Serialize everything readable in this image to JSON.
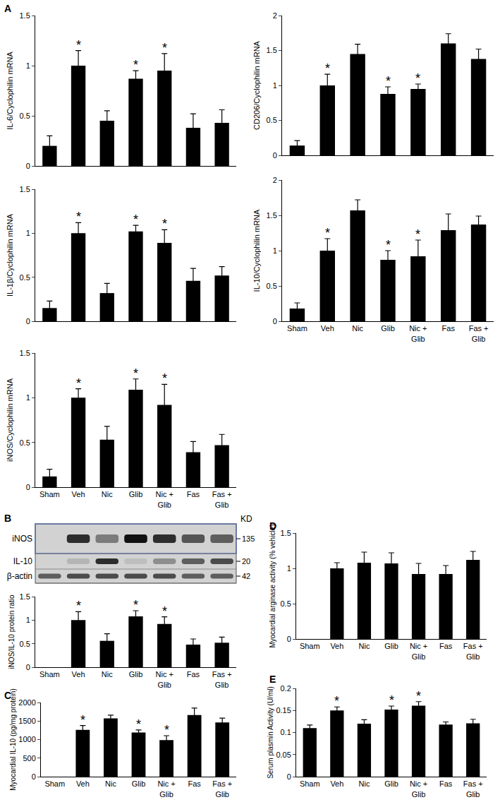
{
  "chart_data": [
    {
      "type": "bar",
      "title": "A",
      "y_label": "IL-6/Cyclophilin mRNA",
      "categories": [
        "Sham",
        "Veh",
        "Nic",
        "Glib",
        "Nic + Glib",
        "Fas",
        "Fas + Glib"
      ],
      "values": [
        0.2,
        1.0,
        0.45,
        0.87,
        0.95,
        0.38,
        0.43
      ],
      "errors": [
        0.1,
        0.15,
        0.1,
        0.08,
        0.17,
        0.14,
        0.13
      ],
      "color": "#000000",
      "ylim": [
        0,
        1.5
      ],
      "yticks": [
        0,
        0.5,
        1,
        1.5
      ],
      "grid": false,
      "tick_labels": "y",
      "annotations": [
        {
          "category": "Veh",
          "text": "*"
        },
        {
          "category": "Glib",
          "text": "*"
        },
        {
          "category": "Nic + Glib",
          "text": "*"
        }
      ]
    },
    {
      "type": "bar",
      "y_label": "IL-1β/Cyclophilin mRNA",
      "categories": [
        "Sham",
        "Veh",
        "Nic",
        "Glib",
        "Nic + Glib",
        "Fas",
        "Fas + Glib"
      ],
      "values": [
        0.15,
        1.0,
        0.32,
        1.02,
        0.89,
        0.46,
        0.52
      ],
      "errors": [
        0.08,
        0.12,
        0.11,
        0.07,
        0.15,
        0.14,
        0.1
      ],
      "color": "#000000",
      "ylim": [
        0,
        1.5
      ],
      "yticks": [
        0,
        0.5,
        1,
        1.5
      ],
      "grid": false,
      "tick_labels": "y",
      "annotations": [
        {
          "category": "Veh",
          "text": "*"
        },
        {
          "category": "Glib",
          "text": "*"
        },
        {
          "category": "Nic + Glib",
          "text": "*"
        }
      ]
    },
    {
      "type": "bar",
      "y_label": "iNOS/Cyclophilin mRNA",
      "categories": [
        "Sham",
        "Veh",
        "Nic",
        "Glib",
        "Nic + Glib",
        "Fas",
        "Fas + Glib"
      ],
      "values": [
        0.12,
        1.0,
        0.53,
        1.09,
        0.92,
        0.39,
        0.47
      ],
      "errors": [
        0.08,
        0.1,
        0.15,
        0.12,
        0.23,
        0.12,
        0.12
      ],
      "color": "#000000",
      "ylim": [
        0,
        1.5
      ],
      "yticks": [
        0,
        0.5,
        1,
        1.5
      ],
      "grid": false,
      "annotations": [
        {
          "category": "Veh",
          "text": "*"
        },
        {
          "category": "Glib",
          "text": "*"
        },
        {
          "category": "Nic + Glib",
          "text": "*"
        }
      ]
    },
    {
      "type": "bar",
      "y_label": "CD206/Cyclophilin mRNA",
      "categories": [
        "Sham",
        "Veh",
        "Nic",
        "Glib",
        "Nic + Glib",
        "Fas",
        "Fas + Glib"
      ],
      "values": [
        0.14,
        1.0,
        1.45,
        0.88,
        0.95,
        1.6,
        1.38
      ],
      "errors": [
        0.07,
        0.16,
        0.14,
        0.1,
        0.07,
        0.14,
        0.14
      ],
      "color": "#000000",
      "ylim": [
        0,
        2
      ],
      "yticks": [
        0,
        0.5,
        1,
        1.5,
        2
      ],
      "grid": false,
      "tick_labels": "y",
      "annotations": [
        {
          "category": "Veh",
          "text": "*"
        },
        {
          "category": "Glib",
          "text": "*"
        },
        {
          "category": "Nic + Glib",
          "text": "*"
        }
      ]
    },
    {
      "type": "bar",
      "y_label": "IL-10/Cyclophilin mRNA",
      "categories": [
        "Sham",
        "Veh",
        "Nic",
        "Glib",
        "Nic + Glib",
        "Fas",
        "Fas + Glib"
      ],
      "values": [
        0.18,
        1.0,
        1.57,
        0.87,
        0.92,
        1.29,
        1.37
      ],
      "errors": [
        0.08,
        0.17,
        0.15,
        0.13,
        0.23,
        0.23,
        0.12
      ],
      "color": "#000000",
      "ylim": [
        0,
        2
      ],
      "yticks": [
        0,
        0.5,
        1,
        1.5,
        2
      ],
      "grid": false,
      "annotations": [
        {
          "category": "Veh",
          "text": "*"
        },
        {
          "category": "Glib",
          "text": "*"
        },
        {
          "category": "Nic + Glib",
          "text": "*"
        }
      ]
    },
    {
      "type": "bar",
      "title": "B",
      "y_label": "iNOS/IL-10 protein ratio",
      "categories": [
        "Sham",
        "Veh",
        "Nic",
        "Glib",
        "Nic + Glib",
        "Fas",
        "Fas + Glib"
      ],
      "values": [
        null,
        1.0,
        0.56,
        1.08,
        0.92,
        0.48,
        0.52
      ],
      "errors": [
        null,
        0.18,
        0.15,
        0.12,
        0.15,
        0.12,
        0.12
      ],
      "color": "#000000",
      "ylim": [
        0,
        1.5
      ],
      "yticks": [
        0,
        0.5,
        1,
        1.5
      ],
      "grid": false,
      "annotations": [
        {
          "category": "Veh",
          "text": "*"
        },
        {
          "category": "Glib",
          "text": "*"
        },
        {
          "category": "Nic + Glib",
          "text": "*"
        }
      ]
    },
    {
      "type": "bar",
      "title": "C",
      "y_label": "Myocardial IL-10 (pg/mg protein)",
      "categories": [
        "Sham",
        "Veh",
        "Nic",
        "Glib",
        "Nic + Glib",
        "Fas",
        "Fas + Glib"
      ],
      "values": [
        null,
        1260,
        1570,
        1190,
        985,
        1660,
        1460
      ],
      "errors": [
        null,
        120,
        90,
        70,
        120,
        190,
        120
      ],
      "color": "#000000",
      "ylim": [
        0,
        2000
      ],
      "yticks": [
        0,
        500,
        1000,
        1500,
        2000
      ],
      "grid": false,
      "annotations": [
        {
          "category": "Veh",
          "text": "*"
        },
        {
          "category": "Glib",
          "text": "*"
        },
        {
          "category": "Nic + Glib",
          "text": "*"
        }
      ]
    },
    {
      "type": "bar",
      "title": "D",
      "y_label": "Myocardial arginase activity (% vehicle)",
      "categories": [
        "Sham",
        "Veh",
        "Nic",
        "Glib",
        "Nic + Glib",
        "Fas",
        "Fas + Glib"
      ],
      "values": [
        null,
        1.0,
        1.08,
        1.07,
        0.92,
        0.92,
        1.12
      ],
      "errors": [
        null,
        0.08,
        0.15,
        0.15,
        0.15,
        0.12,
        0.12
      ],
      "color": "#000000",
      "ylim": [
        0,
        1.5
      ],
      "yticks": [
        0,
        0.5,
        1,
        1.5
      ],
      "grid": false
    },
    {
      "type": "bar",
      "title": "E",
      "y_label": "Serum plasmin Activity (U/ml)",
      "categories": [
        "Sham",
        "Veh",
        "Nic",
        "Glib",
        "Nic + Glib",
        "Fas",
        "Fas + Glib"
      ],
      "values": [
        0.11,
        0.15,
        0.12,
        0.152,
        0.161,
        0.118,
        0.121
      ],
      "errors": [
        0.007,
        0.008,
        0.009,
        0.008,
        0.009,
        0.006,
        0.009
      ],
      "color": "#000000",
      "ylim": [
        0,
        0.2
      ],
      "yticks": [
        0,
        0.05,
        0.1,
        0.15,
        0.2
      ],
      "grid": false,
      "annotations": [
        {
          "category": "Veh",
          "text": "*"
        },
        {
          "category": "Glib",
          "text": "*"
        },
        {
          "category": "Nic + Glib",
          "text": "*"
        }
      ]
    }
  ],
  "western_blot": {
    "unit_label": "KD",
    "rows": [
      {
        "label": "iNOS",
        "kd": 135,
        "intensity": [
          0,
          0.85,
          0.45,
          1,
          0.85,
          0.65,
          0.6
        ]
      },
      {
        "label": "IL-10",
        "kd": 20,
        "intensity": [
          0,
          0.15,
          0.85,
          0.1,
          0.35,
          0.6,
          0.7
        ]
      },
      {
        "label": "β-actin",
        "kd": 42,
        "intensity": [
          0.6,
          0.7,
          0.7,
          0.7,
          0.7,
          0.6,
          0.6
        ]
      }
    ]
  }
}
